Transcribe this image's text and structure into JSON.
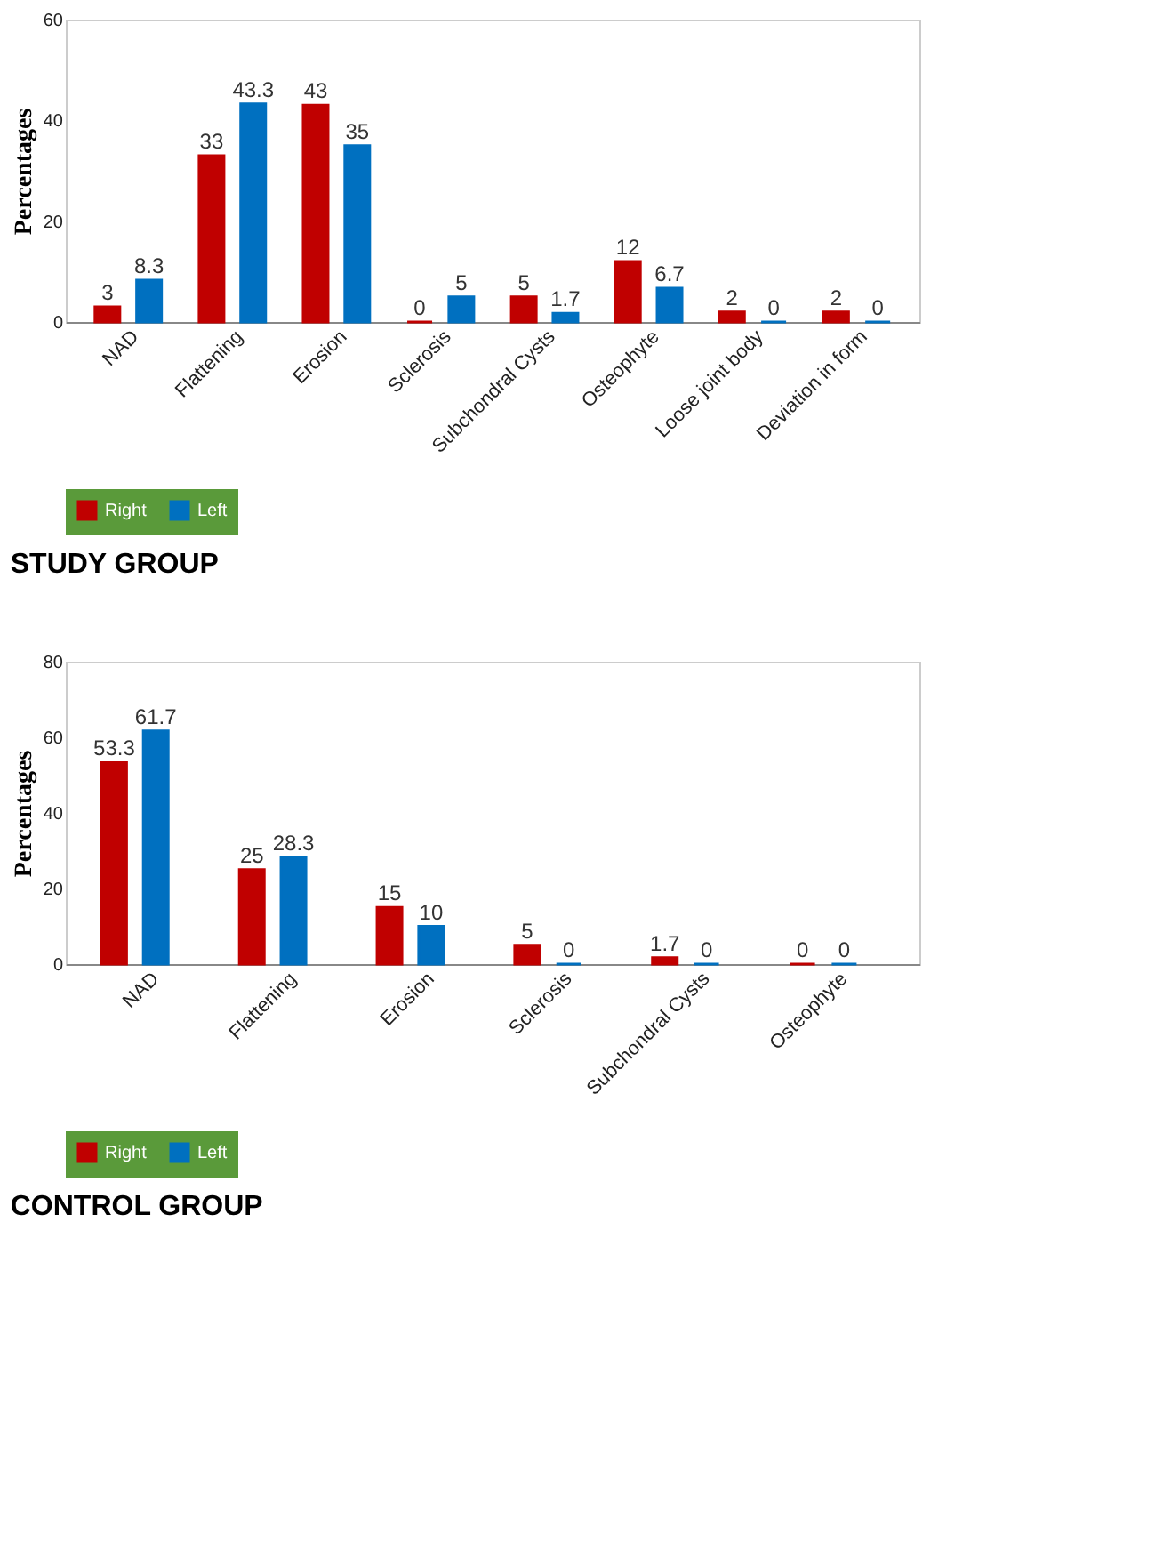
{
  "chart_data": [
    {
      "type": "bar",
      "title": "STUDY GROUP",
      "ylabel": "Percentages",
      "categories": [
        "NAD",
        "Flattening",
        "Erosion",
        "Sclerosis",
        "Subchondral Cysts",
        "Osteophyte",
        "Loose joint body",
        "Deviation in form"
      ],
      "series": [
        {
          "name": "Right",
          "color": "#c00000",
          "values": [
            3,
            33,
            43,
            0,
            5,
            12,
            2,
            2
          ]
        },
        {
          "name": "Left",
          "color": "#0070c0",
          "values": [
            8.3,
            43.3,
            35,
            5,
            1.7,
            6.7,
            0,
            0
          ]
        }
      ],
      "ylim": [
        0,
        60
      ],
      "yticks": [
        0,
        20,
        40,
        60
      ],
      "grid": false,
      "legend": "bottom",
      "data_labels": true
    },
    {
      "type": "bar",
      "title": "CONTROL GROUP",
      "ylabel": "Percentages",
      "categories": [
        "NAD",
        "Flattening",
        "Erosion",
        "Sclerosis",
        "Subchondral Cysts",
        "Osteophyte"
      ],
      "series": [
        {
          "name": "Right",
          "color": "#c00000",
          "values": [
            53.3,
            25,
            15,
            5,
            1.7,
            0
          ]
        },
        {
          "name": "Left",
          "color": "#0070c0",
          "values": [
            61.7,
            28.3,
            10,
            0,
            0,
            0
          ]
        }
      ],
      "ylim": [
        0,
        80
      ],
      "yticks": [
        0,
        20,
        40,
        60,
        80
      ],
      "grid": false,
      "legend": "bottom",
      "data_labels": true
    }
  ]
}
